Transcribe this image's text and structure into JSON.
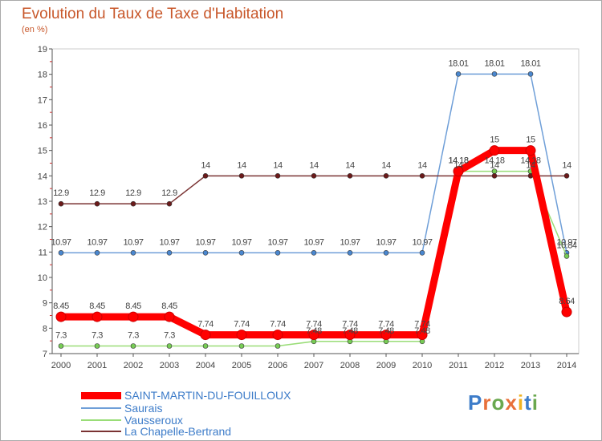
{
  "title": "Evolution du Taux de Taxe d'Habitation",
  "unit_label": "(en %)",
  "brand": {
    "text": "Proxiti"
  },
  "chart_data": {
    "type": "line",
    "title": "Evolution du Taux de Taxe d'Habitation",
    "ylabel": "(en %)",
    "xlabel": "",
    "x": [
      "2000",
      "2001",
      "2002",
      "2003",
      "2004",
      "2005",
      "2006",
      "2007",
      "2008",
      "2009",
      "2010",
      "2011",
      "2012",
      "2013",
      "2014"
    ],
    "ylim": [
      7,
      19
    ],
    "yticks": [
      7,
      8,
      9,
      10,
      11,
      12,
      13,
      14,
      15,
      16,
      17,
      18,
      19
    ],
    "grid": false,
    "legend_position": "bottom-left",
    "series": [
      {
        "name": "SAINT-MARTIN-DU-FOUILLOUX",
        "color": "#ff0000",
        "marker_fill": "#ff0000",
        "values": [
          8.45,
          8.45,
          8.45,
          8.45,
          7.74,
          7.74,
          7.74,
          7.74,
          7.74,
          7.74,
          7.74,
          14.18,
          15,
          15,
          8.64
        ],
        "labels": [
          "8.45",
          "8.45",
          "8.45",
          "8.45",
          "7.74",
          "7.74",
          "7.74",
          "7.74",
          "7.74",
          "7.74",
          "7.74",
          "14.18",
          "15",
          "15",
          "8.64"
        ]
      },
      {
        "name": "Saurais",
        "color": "#6f9fd8",
        "marker_fill": "#4a87cf",
        "values": [
          10.97,
          10.97,
          10.97,
          10.97,
          10.97,
          10.97,
          10.97,
          10.97,
          10.97,
          10.97,
          10.97,
          18.01,
          18.01,
          18.01,
          10.97
        ],
        "labels": [
          "10.97",
          "10.97",
          "10.97",
          "10.97",
          "10.97",
          "10.97",
          "10.97",
          "10.97",
          "10.97",
          "10.97",
          "10.97",
          "18.01",
          "18.01",
          "18.01",
          "10.97"
        ]
      },
      {
        "name": "Vausseroux",
        "color": "#99dd77",
        "marker_fill": "#77cc55",
        "values": [
          7.3,
          7.3,
          7.3,
          7.3,
          7.3,
          7.3,
          7.3,
          7.48,
          7.48,
          7.48,
          7.48,
          14.18,
          14.18,
          14.18,
          10.84
        ],
        "labels": [
          "7.3",
          "7.3",
          "7.3",
          "7.3",
          "",
          "",
          "",
          "7.48",
          "7.48",
          "7.48",
          "7.48",
          "14.18",
          "14.18",
          "14.18",
          "10.84"
        ]
      },
      {
        "name": "La Chapelle-Bertrand",
        "color": "#7a3333",
        "marker_fill": "#6b1a1a",
        "values": [
          12.9,
          12.9,
          12.9,
          12.9,
          14,
          14,
          14,
          14,
          14,
          14,
          14,
          14,
          14,
          14,
          14
        ],
        "labels": [
          "12.9",
          "12.9",
          "12.9",
          "12.9",
          "14",
          "14",
          "14",
          "14",
          "14",
          "14",
          "14",
          "14",
          "14",
          "14",
          "14"
        ]
      }
    ]
  }
}
